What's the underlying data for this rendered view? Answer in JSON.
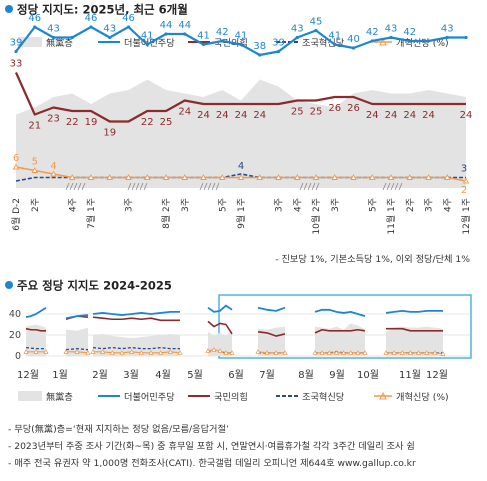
{
  "chart_data": [
    {
      "type": "line",
      "title": "정당 지지도: 2025년, 최근 6개월",
      "legend": [
        "無黨층",
        "더불어민주당",
        "국민의힘",
        "조국혁신당",
        "개혁신당 (%)"
      ],
      "x": [
        "6월 D-2",
        "2주",
        "3주",
        "4주",
        "7월 1주",
        "2주",
        "3주",
        "4주",
        "8월 2주",
        "3주",
        "4주",
        "5주",
        "9월 1주",
        "2주",
        "3주",
        "4주",
        "10월 2주",
        "3주",
        "4주",
        "5주",
        "11월 1주",
        "2주",
        "3주",
        "4주",
        "12월 1주"
      ],
      "x_labels": [
        "6월 D-2",
        "2주",
        "4주",
        "7월 1주",
        "3주",
        "8월 2주",
        "3주",
        "5주",
        "9월 1주",
        "3주",
        "4주",
        "10월 2주",
        "3주",
        "5주",
        "11월 1주",
        "2주",
        "3주",
        "4주",
        "12월 1주"
      ],
      "series": [
        {
          "name": "더불어민주당",
          "values": [
            39,
            46,
            43,
            43,
            46,
            43,
            46,
            41,
            44,
            44,
            41,
            42,
            41,
            38,
            39,
            43,
            45,
            41,
            40,
            42,
            43,
            42,
            42,
            43,
            43
          ]
        },
        {
          "name": "국민의힘",
          "values": [
            33,
            21,
            23,
            22,
            22,
            19,
            19,
            22,
            22,
            25,
            24,
            24,
            24,
            24,
            24,
            25,
            25,
            26,
            26,
            24,
            24,
            24,
            24,
            24,
            24
          ]
        },
        {
          "name": "조국혁신당",
          "values": [
            2,
            3,
            3,
            3,
            3,
            3,
            3,
            3,
            3,
            3,
            3,
            3,
            4,
            3,
            3,
            3,
            3,
            3,
            3,
            3,
            3,
            3,
            3,
            3,
            3
          ]
        },
        {
          "name": "개혁신당",
          "values": [
            6,
            5,
            4,
            3,
            3,
            3,
            3,
            3,
            3,
            3,
            3,
            3,
            3,
            3,
            3,
            3,
            3,
            3,
            3,
            3,
            3,
            3,
            3,
            3,
            2
          ]
        },
        {
          "name": "無黨층",
          "values": [
            21,
            23,
            26,
            27,
            24,
            27,
            28,
            31,
            28,
            27,
            26,
            28,
            25,
            31,
            29,
            25,
            24,
            23,
            27,
            28,
            27,
            27,
            28,
            27,
            26
          ]
        }
      ],
      "data_labels": {
        "더불어민주당": [
          "39",
          "46",
          "43",
          "46",
          "43",
          "46",
          "41",
          "44",
          "44",
          "41",
          "42",
          "41",
          "38",
          "39",
          "43",
          "45",
          "41",
          "40",
          "42",
          "43",
          "42",
          "43"
        ],
        "국민의힘": [
          "33",
          "21",
          "23",
          "22",
          "19",
          "19",
          "22",
          "25",
          "24",
          "24",
          "24",
          "24",
          "24",
          "25",
          "25",
          "26",
          "26",
          "24",
          "24",
          "24",
          "24",
          "24"
        ],
        "extra": [
          "6",
          "5",
          "4",
          "4",
          "2",
          "3"
        ]
      },
      "footnote": "- 진보당 1%, 기본소득당 1%, 이외 정당/단체 1%",
      "colors": {
        "민주당": "#1e86d1",
        "국민의힘": "#8b2b2b",
        "조국혁신당": "#2a4a8a",
        "개혁신당": "#f29a4a",
        "무당층": "#e3e3e3",
        "title_dot": "#1e86d1"
      }
    },
    {
      "type": "line",
      "title": "주요 정당 지지도 2024-2025",
      "months": [
        "12월",
        "1월",
        "2월",
        "3월",
        "4월",
        "5월",
        "6월",
        "7월",
        "8월",
        "9월",
        "10월",
        "11월",
        "12월"
      ],
      "yticks": [
        "40",
        "20",
        "0"
      ],
      "ylim": [
        0,
        50
      ],
      "legend": [
        "無黨층",
        "더불어민주당",
        "국민의힘",
        "조국혁신당",
        "개혁신당 (%)"
      ]
    }
  ],
  "notes": [
    "- 무당(無黨)층=‘현재 지지하는 정당 없음/모름/응답거절’",
    "- 2023년부터 주중 조사 기간(화~목) 중 휴무일 포함 시, 연말연시·여름휴가철 각각 3주간 데일리 조사 쉼",
    "- 매주 전국 유권자 약 1,000명 전화조사(CATI). 한국갤럽 데일리 오피니언 제644호 www.gallup.co.kr"
  ]
}
